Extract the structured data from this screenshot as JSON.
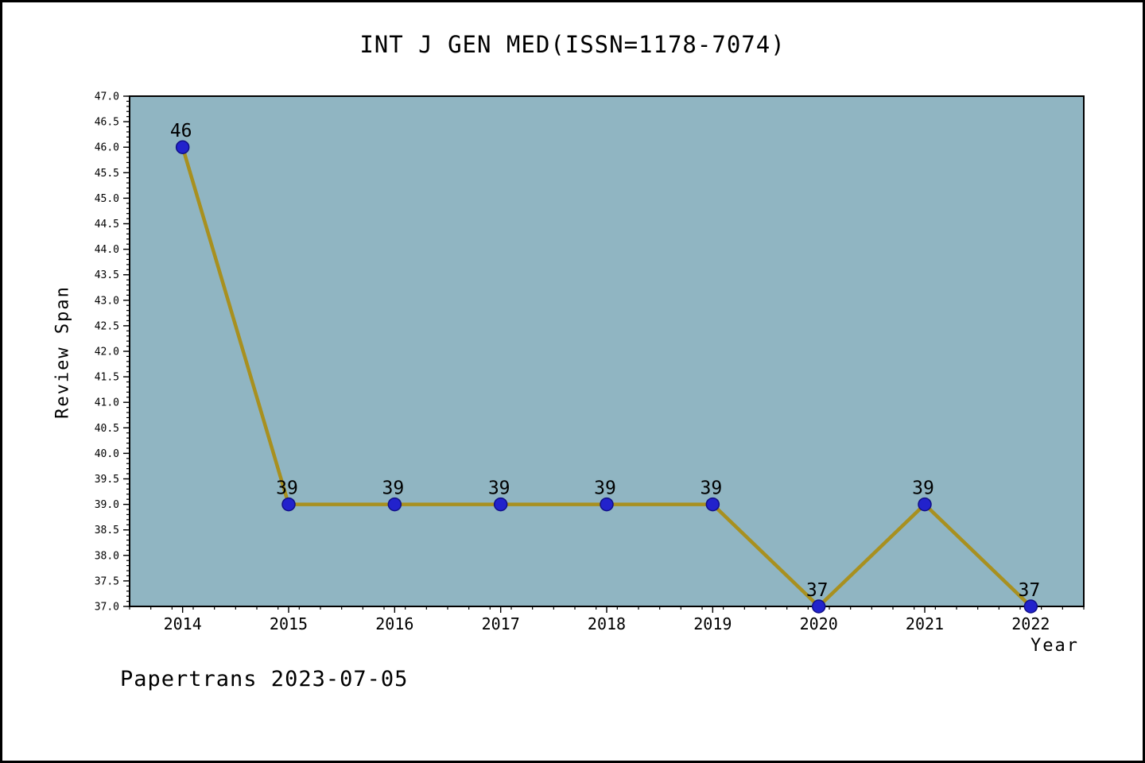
{
  "footer": "Papertrans 2023-07-05",
  "chart_data": {
    "type": "line",
    "title": "INT J GEN MED(ISSN=1178-7074)",
    "xlabel": "Year",
    "ylabel": "Review Span",
    "x": [
      2014,
      2015,
      2016,
      2017,
      2018,
      2019,
      2020,
      2021,
      2022
    ],
    "values": [
      46,
      39,
      39,
      39,
      39,
      39,
      37,
      39,
      37
    ],
    "point_labels": [
      "46",
      "39",
      "39",
      "39",
      "39",
      "39",
      "37",
      "39",
      "37"
    ],
    "x_tick_labels": [
      "2014",
      "2015",
      "2016",
      "2017",
      "2018",
      "2019",
      "2020",
      "2021",
      "2022"
    ],
    "y_ticks": [
      "37.0",
      "37.5",
      "38.0",
      "38.5",
      "39.0",
      "39.5",
      "40.0",
      "40.5",
      "41.0",
      "41.5",
      "42.0",
      "42.5",
      "43.0",
      "43.5",
      "44.0",
      "44.5",
      "45.0",
      "45.5",
      "46.0",
      "46.5",
      "47.0"
    ],
    "ylim": [
      37.0,
      47.0
    ],
    "xlim": [
      2013.5,
      2022.5
    ],
    "y_minor_step": 0.1,
    "x_minor_step": 0.2,
    "grid": false,
    "legend": null,
    "colors": {
      "line": "#a8901f",
      "marker_fill": "#2222cc",
      "marker_edge": "#101088",
      "plot_background": "#90b5c2",
      "axis": "#000000"
    }
  }
}
